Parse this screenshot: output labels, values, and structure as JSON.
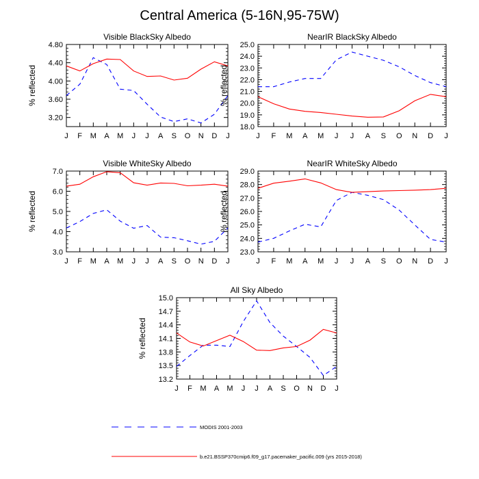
{
  "figure": {
    "title": "Central America (5-16N,95-75W)"
  },
  "legend": [
    {
      "label": "MODIS 2001-2003",
      "color": "#0000ff",
      "dash": true
    },
    {
      "label": "b.e21.BSSP370cmip6.f09_g17.pacemaker_pacific.009 (yrs 2015-2018)",
      "color": "#ff0000",
      "dash": false
    }
  ],
  "chart_data": [
    {
      "type": "line",
      "title": "Visible BlackSky Albedo",
      "ylabel": "% reflected",
      "categories": [
        "J",
        "F",
        "M",
        "A",
        "M",
        "J",
        "J",
        "A",
        "S",
        "O",
        "N",
        "D",
        "J"
      ],
      "ylim": [
        3.0,
        4.8
      ],
      "yticks": [
        3.2,
        3.6,
        4.0,
        4.4,
        4.8
      ],
      "ytick_labels": [
        "3.20",
        "3.60",
        "4.00",
        "4.40",
        "4.80"
      ],
      "series": [
        {
          "name": "MODIS 2001-2003",
          "color": "#0000ff",
          "dash": true,
          "values": [
            3.68,
            3.93,
            4.51,
            4.36,
            3.82,
            3.79,
            3.49,
            3.21,
            3.11,
            3.17,
            3.08,
            3.27,
            3.68
          ]
        },
        {
          "name": "b.e21.BSSP370cmip6.f09_g17.pacemaker_pacific.009 (yrs 2015-2018)",
          "color": "#ff0000",
          "dash": false,
          "values": [
            4.33,
            4.22,
            4.38,
            4.48,
            4.47,
            4.22,
            4.1,
            4.11,
            4.02,
            4.06,
            4.26,
            4.42,
            4.33
          ]
        }
      ]
    },
    {
      "type": "line",
      "title": "NearIR BlackSky Albedo",
      "ylabel": "% reflected",
      "categories": [
        "J",
        "F",
        "M",
        "A",
        "M",
        "J",
        "J",
        "A",
        "S",
        "O",
        "N",
        "D",
        "J"
      ],
      "ylim": [
        18.0,
        25.0
      ],
      "yticks": [
        18.0,
        19.0,
        20.0,
        21.0,
        22.0,
        23.0,
        24.0,
        25.0
      ],
      "ytick_labels": [
        "18.0",
        "19.0",
        "20.0",
        "21.0",
        "22.0",
        "23.0",
        "24.0",
        "25.0"
      ],
      "series": [
        {
          "name": "MODIS 2001-2003",
          "color": "#0000ff",
          "dash": true,
          "values": [
            21.4,
            21.4,
            21.8,
            22.1,
            22.1,
            23.7,
            24.35,
            24.0,
            23.65,
            23.1,
            22.35,
            21.75,
            21.4
          ]
        },
        {
          "name": "b.e21.BSSP370cmip6.f09_g17.pacemaker_pacific.009 (yrs 2015-2018)",
          "color": "#ff0000",
          "dash": false,
          "values": [
            20.55,
            19.95,
            19.5,
            19.3,
            19.2,
            19.05,
            18.9,
            18.8,
            18.82,
            19.35,
            20.2,
            20.75,
            20.55
          ]
        }
      ]
    },
    {
      "type": "line",
      "title": "Visible WhiteSky Albedo",
      "ylabel": "% reflected",
      "categories": [
        "J",
        "F",
        "M",
        "A",
        "M",
        "J",
        "J",
        "A",
        "S",
        "O",
        "N",
        "D",
        "J"
      ],
      "ylim": [
        3.0,
        7.0
      ],
      "yticks": [
        3.0,
        4.0,
        5.0,
        6.0,
        7.0
      ],
      "ytick_labels": [
        "3.0",
        "4.0",
        "5.0",
        "6.0",
        "7.0"
      ],
      "series": [
        {
          "name": "MODIS 2001-2003",
          "color": "#0000ff",
          "dash": true,
          "values": [
            4.18,
            4.5,
            4.9,
            5.08,
            4.52,
            4.17,
            4.3,
            3.73,
            3.7,
            3.55,
            3.38,
            3.52,
            4.18
          ]
        },
        {
          "name": "b.e21.BSSP370cmip6.f09_g17.pacemaker_pacific.009 (yrs 2015-2018)",
          "color": "#ff0000",
          "dash": false,
          "values": [
            6.25,
            6.35,
            6.72,
            6.97,
            6.92,
            6.42,
            6.3,
            6.41,
            6.39,
            6.27,
            6.3,
            6.35,
            6.25
          ]
        }
      ]
    },
    {
      "type": "line",
      "title": "NearIR WhiteSky Albedo",
      "ylabel": "% reflected",
      "categories": [
        "J",
        "F",
        "M",
        "A",
        "M",
        "J",
        "J",
        "A",
        "S",
        "O",
        "N",
        "D",
        "J"
      ],
      "ylim": [
        23.0,
        29.0
      ],
      "yticks": [
        23.0,
        24.0,
        25.0,
        26.0,
        27.0,
        28.0,
        29.0
      ],
      "ytick_labels": [
        "23.0",
        "24.0",
        "25.0",
        "26.0",
        "27.0",
        "28.0",
        "29.0"
      ],
      "series": [
        {
          "name": "MODIS 2001-2003",
          "color": "#0000ff",
          "dash": true,
          "values": [
            23.72,
            24.0,
            24.55,
            25.05,
            24.85,
            26.82,
            27.42,
            27.2,
            26.88,
            26.1,
            25.0,
            23.92,
            23.72
          ]
        },
        {
          "name": "b.e21.BSSP370cmip6.f09_g17.pacemaker_pacific.009 (yrs 2015-2018)",
          "color": "#ff0000",
          "dash": false,
          "values": [
            27.72,
            28.1,
            28.25,
            28.42,
            28.12,
            27.62,
            27.42,
            27.47,
            27.52,
            27.55,
            27.58,
            27.62,
            27.72
          ]
        }
      ]
    },
    {
      "type": "line",
      "title": "All Sky Albedo",
      "ylabel": "% reflected",
      "categories": [
        "J",
        "F",
        "M",
        "A",
        "M",
        "J",
        "J",
        "A",
        "S",
        "O",
        "N",
        "D",
        "J"
      ],
      "ylim": [
        13.2,
        15.0
      ],
      "yticks": [
        13.2,
        13.5,
        13.8,
        14.1,
        14.4,
        14.7,
        15.0
      ],
      "ytick_labels": [
        "13.2",
        "13.5",
        "13.8",
        "14.1",
        "14.4",
        "14.7",
        "15.0"
      ],
      "series": [
        {
          "name": "MODIS 2001-2003",
          "color": "#0000ff",
          "dash": true,
          "values": [
            13.48,
            13.72,
            13.95,
            13.95,
            13.92,
            14.47,
            14.93,
            14.45,
            14.15,
            13.92,
            13.68,
            13.28,
            13.48
          ]
        },
        {
          "name": "b.e21.BSSP370cmip6.f09_g17.pacemaker_pacific.009 (yrs 2015-2018)",
          "color": "#ff0000",
          "dash": false,
          "values": [
            14.22,
            14.02,
            13.93,
            14.05,
            14.17,
            14.03,
            13.84,
            13.83,
            13.89,
            13.92,
            14.06,
            14.3,
            14.22
          ]
        }
      ]
    }
  ]
}
